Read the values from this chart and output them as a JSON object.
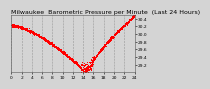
{
  "title": "Milwaukee  Barometric Pressure per Minute  (Last 24 Hours)",
  "background_color": "#d4d4d4",
  "plot_bg_color": "#d4d4d4",
  "line_color": "#ff0000",
  "grid_color": "#888888",
  "ylim": [
    29.0,
    30.5
  ],
  "y_ticks": [
    29.2,
    29.4,
    29.6,
    29.8,
    30.0,
    30.2,
    30.4
  ],
  "title_fontsize": 4.5,
  "tick_fontsize": 3.2,
  "num_points": 1440,
  "x_tick_labels": [
    "0",
    "2",
    "4",
    "6",
    "8",
    "10",
    "12",
    "14",
    "16",
    "18",
    "20",
    "22",
    "24"
  ]
}
